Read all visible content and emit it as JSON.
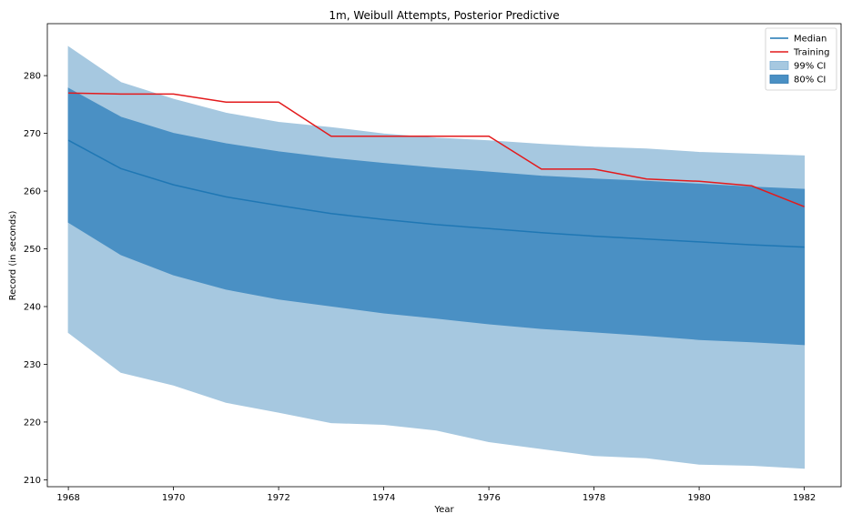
{
  "chart_data": {
    "type": "area",
    "title": "1m, Weibull Attempts, Posterior Predictive",
    "xlabel": "Year",
    "ylabel": "Record (in seconds)",
    "xlim": [
      1967.6,
      1982.7
    ],
    "ylim": [
      208.8,
      289.0
    ],
    "xticks": [
      1968,
      1970,
      1972,
      1974,
      1976,
      1978,
      1980,
      1982
    ],
    "yticks": [
      210,
      220,
      230,
      240,
      250,
      260,
      270,
      280
    ],
    "legend_position": "top-right",
    "x": [
      1968,
      1969,
      1970,
      1971,
      1972,
      1973,
      1974,
      1975,
      1976,
      1977,
      1978,
      1979,
      1980,
      1981,
      1982
    ],
    "series": [
      {
        "name": "Median",
        "kind": "line",
        "color": "#1f77b4",
        "values": [
          268.8,
          263.9,
          261.1,
          259.0,
          257.5,
          256.1,
          255.1,
          254.2,
          253.5,
          252.8,
          252.2,
          251.7,
          251.2,
          250.7,
          250.3
        ]
      },
      {
        "name": "Training",
        "kind": "line",
        "color": "#e31a1c",
        "values": [
          277.0,
          276.8,
          276.8,
          275.4,
          275.4,
          269.5,
          269.5,
          269.5,
          269.5,
          263.8,
          263.8,
          262.1,
          261.7,
          260.9,
          257.3
        ]
      },
      {
        "name": "99% CI",
        "kind": "band",
        "color": "#a6c8e0",
        "lower": [
          235.5,
          228.6,
          226.4,
          223.4,
          221.7,
          219.9,
          219.6,
          218.6,
          216.6,
          215.4,
          214.2,
          213.8,
          212.7,
          212.5,
          212.0
        ],
        "upper": [
          285.0,
          278.8,
          275.9,
          273.5,
          271.9,
          271.0,
          269.9,
          269.2,
          268.7,
          268.1,
          267.6,
          267.3,
          266.7,
          266.4,
          266.1
        ]
      },
      {
        "name": "80% CI",
        "kind": "band",
        "color": "#4a90c4",
        "lower": [
          254.6,
          249.0,
          245.5,
          243.0,
          241.3,
          240.1,
          238.9,
          238.0,
          237.0,
          236.2,
          235.6,
          235.0,
          234.3,
          233.9,
          233.4
        ],
        "upper": [
          277.8,
          272.8,
          270.0,
          268.2,
          266.8,
          265.7,
          264.8,
          264.0,
          263.3,
          262.6,
          262.1,
          261.7,
          261.2,
          260.7,
          260.3
        ]
      }
    ],
    "legend": [
      {
        "label": "Median",
        "kind": "line",
        "color": "#1f77b4"
      },
      {
        "label": "Training",
        "kind": "line",
        "color": "#e31a1c"
      },
      {
        "label": "99% CI",
        "kind": "patch",
        "color": "#a6c8e0",
        "edge": "#7fb0d4"
      },
      {
        "label": "80% CI",
        "kind": "patch",
        "color": "#4a90c4",
        "edge": "#2f78b0"
      }
    ]
  }
}
